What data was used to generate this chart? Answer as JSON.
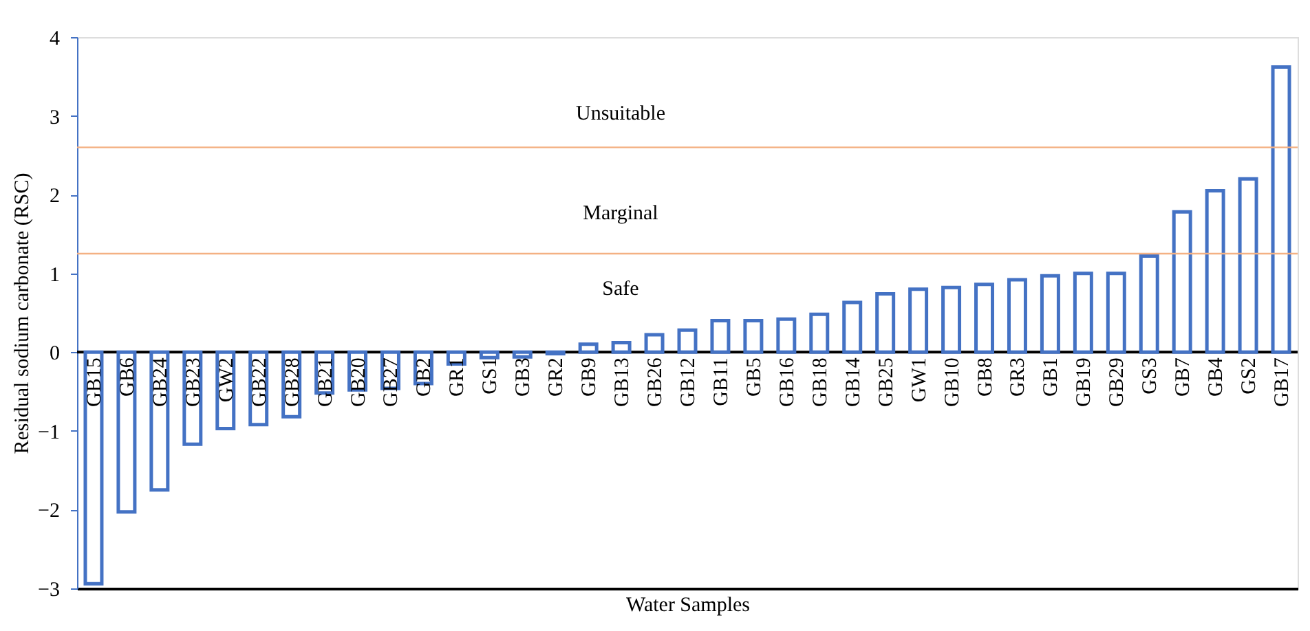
{
  "chart_data": {
    "type": "bar",
    "xlabel": "Water Samples",
    "ylabel": "Residual sodium carbonate (RSC)",
    "categories": [
      "GB15",
      "GB6",
      "GB24",
      "GB23",
      "GW2",
      "GB22",
      "GB28",
      "GB21",
      "GB20",
      "GB27",
      "GB2",
      "GR1",
      "GS1",
      "GB3",
      "GR2",
      "GB9",
      "GB13",
      "GB26",
      "GB12",
      "GB11",
      "GB5",
      "GB16",
      "GB18",
      "GB14",
      "GB25",
      "GW1",
      "GB10",
      "GB8",
      "GR3",
      "GB1",
      "GB19",
      "GB29",
      "GS3",
      "GB7",
      "GB4",
      "GS2",
      "GB17"
    ],
    "values": [
      -2.94,
      -2.03,
      -1.75,
      -1.17,
      -0.97,
      -0.92,
      -0.82,
      -0.52,
      -0.48,
      -0.46,
      -0.4,
      -0.15,
      -0.07,
      -0.06,
      -0.02,
      0.1,
      0.12,
      0.22,
      0.28,
      0.4,
      0.4,
      0.42,
      0.48,
      0.63,
      0.74,
      0.8,
      0.82,
      0.86,
      0.92,
      0.97,
      1.0,
      1.0,
      1.22,
      1.78,
      2.05,
      2.2,
      3.62
    ],
    "color": "#4472c4",
    "ylim": [
      -3,
      4
    ],
    "yticks": [
      -3,
      -2,
      -1,
      0,
      1,
      2,
      3,
      4
    ],
    "grid": false,
    "ref_lines": [
      {
        "axis": "y",
        "value": 2.6,
        "color": "#f4b183"
      },
      {
        "axis": "y",
        "value": 1.25,
        "color": "#f4b183"
      }
    ],
    "annotations": [
      "Unsuitable",
      "Marginal",
      "Safe"
    ]
  }
}
